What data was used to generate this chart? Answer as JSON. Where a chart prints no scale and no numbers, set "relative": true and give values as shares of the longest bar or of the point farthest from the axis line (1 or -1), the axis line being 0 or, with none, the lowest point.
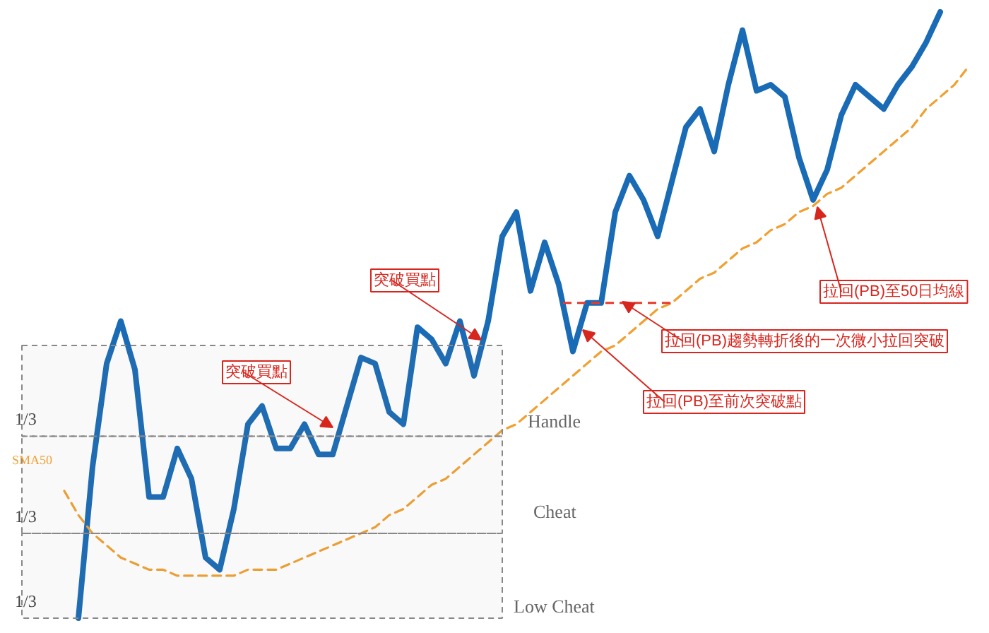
{
  "chart_data": {
    "type": "line",
    "relative": true,
    "grid": false,
    "categories": [
      null,
      null,
      null,
      null,
      null,
      null,
      null,
      null,
      null,
      null,
      null,
      null,
      null,
      null,
      null,
      null,
      null,
      null,
      null,
      null,
      null,
      null,
      null,
      null,
      null,
      null,
      null,
      null,
      null,
      null,
      null,
      null,
      null,
      null,
      null,
      null,
      null,
      null,
      null,
      null,
      null,
      null,
      null,
      null,
      null,
      null,
      null,
      null,
      null,
      null,
      null,
      null,
      null,
      null,
      null,
      null,
      null,
      null,
      null,
      null,
      null,
      null,
      null,
      null,
      null
    ],
    "series": [
      {
        "color": "#1a6bb5",
        "line_style": "solid",
        "values": [
          null,
          0,
          0.25,
          0.42,
          0.49,
          0.41,
          0.2,
          0.2,
          0.28,
          0.23,
          0.1,
          0.08,
          0.18,
          0.32,
          0.35,
          0.28,
          0.28,
          0.32,
          0.27,
          0.27,
          0.35,
          0.43,
          0.42,
          0.34,
          0.32,
          0.48,
          0.46,
          0.42,
          0.49,
          0.4,
          0.49,
          0.63,
          0.67,
          0.54,
          0.62,
          0.55,
          0.44,
          0.52,
          0.52,
          0.67,
          0.73,
          0.69,
          0.63,
          0.72,
          0.81,
          0.84,
          0.77,
          0.88,
          0.97,
          0.87,
          0.88,
          0.86,
          0.76,
          0.69,
          0.74,
          0.83,
          0.88,
          0.86,
          0.84,
          0.88,
          0.91,
          0.95,
          1,
          null,
          null
        ]
      },
      {
        "name": "SMA50",
        "color": "#f0a030",
        "line_style": "dashed",
        "values": [
          0.21,
          0.17,
          0.14,
          0.12,
          0.1,
          0.09,
          0.08,
          0.08,
          0.07,
          0.07,
          0.07,
          0.07,
          0.07,
          0.08,
          0.08,
          0.08,
          0.09,
          0.1,
          0.11,
          0.12,
          0.13,
          0.14,
          0.15,
          0.17,
          0.18,
          0.2,
          0.22,
          0.23,
          0.25,
          0.27,
          0.29,
          0.31,
          0.32,
          0.34,
          0.36,
          0.38,
          0.4,
          0.42,
          0.44,
          0.45,
          0.47,
          0.49,
          0.51,
          0.52,
          0.54,
          0.56,
          0.57,
          0.59,
          0.61,
          0.62,
          0.64,
          0.65,
          0.67,
          0.68,
          0.7,
          0.71,
          0.73,
          0.75,
          0.77,
          0.79,
          0.81,
          0.84,
          0.86,
          0.88,
          0.91
        ]
      }
    ],
    "bands": [
      {
        "axis": "y",
        "from": 0.3,
        "to": 0.45,
        "label": "1/3",
        "color": "#888888"
      },
      {
        "axis": "y",
        "from": 0.14,
        "to": 0.3,
        "label": "1/3",
        "color": "#888888"
      },
      {
        "axis": "y",
        "from": 0,
        "to": 0.14,
        "label": "1/3",
        "color": "#888888"
      }
    ],
    "ref_lines": [
      {
        "axis": "y",
        "value": 0.52,
        "color": "#e8392b",
        "line_style": "dashed"
      }
    ],
    "annotations": [
      "突破買點",
      "突破買點",
      "拉回(PB)至50日均線",
      "拉回(PB)趨勢轉折後的一次微小拉回突破",
      "拉回(PB)至前次突破點",
      "Handle",
      "Cheat",
      "Low Cheat"
    ]
  }
}
